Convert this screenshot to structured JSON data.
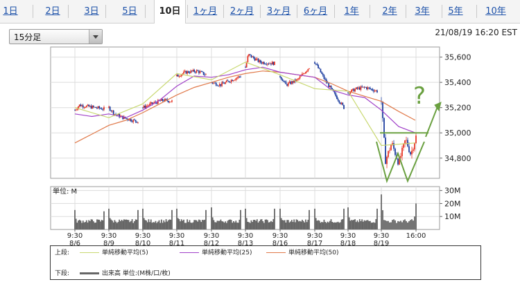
{
  "tabs": [
    {
      "label": "1日",
      "active": false
    },
    {
      "label": "2日",
      "active": false
    },
    {
      "label": "3日",
      "active": false
    },
    {
      "label": "5日",
      "active": false
    },
    {
      "label": "10日",
      "active": true
    },
    {
      "label": "1ヶ月",
      "active": false
    },
    {
      "label": "2ヶ月",
      "active": false
    },
    {
      "label": "3ヶ月",
      "active": false
    },
    {
      "label": "6ヶ月",
      "active": false
    },
    {
      "label": "1年",
      "active": false
    },
    {
      "label": "2年",
      "active": false
    },
    {
      "label": "3年",
      "active": false
    },
    {
      "label": "5年",
      "active": false
    },
    {
      "label": "10年",
      "active": false
    }
  ],
  "interval_select": {
    "value": "15分足"
  },
  "timestamp": "21/08/19 16:20 EST",
  "legend": {
    "upper_label": "上段:",
    "lower_label": "下段:",
    "upper_items": [
      {
        "label": "単純移動平均(5)",
        "color": "#c8d870"
      },
      {
        "label": "単純移動平均(25)",
        "color": "#a040c8"
      },
      {
        "label": "単純移動平均(50)",
        "color": "#e07848"
      }
    ],
    "lower_item": {
      "label": "出来高 単位:(M株/口/枚)",
      "color": "#666666"
    }
  },
  "colors": {
    "up": "#e83828",
    "down": "#2040a0",
    "ma5": "#c8d870",
    "ma25": "#a040c8",
    "ma50": "#e07848",
    "annotation": "#6aa040",
    "volume": "#666666"
  },
  "chart_data": [
    {
      "type": "candlestick",
      "ylim": [
        34640,
        35680
      ],
      "yticks": [
        34800,
        35000,
        35200,
        35400,
        35600
      ],
      "ytick_labels": [
        "34,800",
        "35,000",
        "35,200",
        "35,400",
        "35,600"
      ],
      "grid": true,
      "x_tick_labels": [
        {
          "time": "9:30",
          "date": "8/6"
        },
        {
          "time": "9:30",
          "date": "8/9"
        },
        {
          "time": "9:30",
          "date": "8/10"
        },
        {
          "time": "9:30",
          "date": "8/11"
        },
        {
          "time": "9:30",
          "date": "8/12"
        },
        {
          "time": "9:30",
          "date": "8/13"
        },
        {
          "time": "9:30",
          "date": "8/16"
        },
        {
          "time": "9:30",
          "date": "8/17"
        },
        {
          "time": "9:30",
          "date": "8/18"
        },
        {
          "time": "9:30",
          "date": "8/19"
        },
        {
          "time": "16:00",
          "date": ""
        }
      ],
      "session_path": [
        [
          [
            0,
            35180
          ],
          [
            0.15,
            35220
          ],
          [
            0.4,
            35210
          ],
          [
            0.7,
            35200
          ],
          [
            1,
            35190
          ]
        ],
        [
          [
            0,
            35200
          ],
          [
            0.2,
            35150
          ],
          [
            0.5,
            35120
          ],
          [
            0.8,
            35100
          ],
          [
            1,
            35090
          ]
        ],
        [
          [
            0,
            35200
          ],
          [
            0.3,
            35230
          ],
          [
            0.7,
            35260
          ],
          [
            1,
            35250
          ]
        ],
        [
          [
            0,
            35450
          ],
          [
            0.3,
            35480
          ],
          [
            0.7,
            35490
          ],
          [
            1,
            35460
          ]
        ],
        [
          [
            0,
            35400
          ],
          [
            0.3,
            35380
          ],
          [
            0.7,
            35420
          ],
          [
            1,
            35450
          ]
        ],
        [
          [
            0,
            35520
          ],
          [
            0.1,
            35620
          ],
          [
            0.5,
            35560
          ],
          [
            1,
            35550
          ]
        ],
        [
          [
            0,
            35450
          ],
          [
            0.2,
            35380
          ],
          [
            0.6,
            35420
          ],
          [
            1,
            35520
          ]
        ],
        [
          [
            0,
            35560
          ],
          [
            0.15,
            35500
          ],
          [
            0.4,
            35400
          ],
          [
            0.7,
            35300
          ],
          [
            1,
            35200
          ]
        ],
        [
          [
            0,
            35320
          ],
          [
            0.3,
            35350
          ],
          [
            0.6,
            35360
          ],
          [
            1,
            35330
          ]
        ],
        [
          [
            0,
            35250
          ],
          [
            0.12,
            34780
          ],
          [
            0.3,
            34920
          ],
          [
            0.5,
            34760
          ],
          [
            0.7,
            34950
          ],
          [
            0.85,
            34830
          ],
          [
            1,
            34970
          ]
        ]
      ],
      "ma5": [
        [
          0,
          35200
        ],
        [
          1,
          35120
        ],
        [
          2,
          35230
        ],
        [
          3,
          35470
        ],
        [
          4,
          35420
        ],
        [
          5,
          35560
        ],
        [
          6,
          35460
        ],
        [
          7,
          35350
        ],
        [
          8,
          35330
        ],
        [
          9,
          34900
        ],
        [
          9.98,
          34920
        ]
      ],
      "ma25": [
        [
          0,
          35150
        ],
        [
          0.5,
          35130
        ],
        [
          1,
          35150
        ],
        [
          1.5,
          35120
        ],
        [
          2,
          35180
        ],
        [
          2.5,
          35260
        ],
        [
          3,
          35370
        ],
        [
          3.5,
          35450
        ],
        [
          4,
          35440
        ],
        [
          4.5,
          35460
        ],
        [
          5,
          35500
        ],
        [
          5.5,
          35520
        ],
        [
          6,
          35480
        ],
        [
          6.5,
          35460
        ],
        [
          7,
          35440
        ],
        [
          7.5,
          35340
        ],
        [
          8,
          35300
        ],
        [
          8.5,
          35280
        ],
        [
          9,
          35180
        ],
        [
          9.5,
          35050
        ],
        [
          9.98,
          35000
        ]
      ],
      "ma50": [
        [
          0,
          34920
        ],
        [
          0.5,
          34990
        ],
        [
          1,
          35060
        ],
        [
          1.5,
          35100
        ],
        [
          2,
          35160
        ],
        [
          2.5,
          35230
        ],
        [
          3,
          35300
        ],
        [
          3.5,
          35360
        ],
        [
          4,
          35400
        ],
        [
          4.5,
          35440
        ],
        [
          5,
          35470
        ],
        [
          5.5,
          35490
        ],
        [
          6,
          35480
        ],
        [
          6.5,
          35460
        ],
        [
          7,
          35440
        ],
        [
          7.5,
          35390
        ],
        [
          8,
          35330
        ],
        [
          8.5,
          35290
        ],
        [
          9,
          35250
        ],
        [
          9.5,
          35170
        ],
        [
          9.98,
          35100
        ]
      ],
      "annotation": {
        "question_mark": "?",
        "w_pattern": true,
        "neckline": 35000
      }
    },
    {
      "type": "bar",
      "unit_label": "単位: M",
      "ylim": [
        0,
        33
      ],
      "yticks": [
        10,
        20,
        30
      ],
      "ytick_labels": [
        "10M",
        "20M",
        "30M"
      ],
      "session_open_spike": [
        15,
        16,
        16,
        16,
        17,
        16,
        16,
        16,
        17,
        27
      ],
      "session_close_spike": [
        14,
        15,
        15,
        15,
        15,
        16,
        15,
        16,
        16,
        20
      ],
      "base_level": 5
    }
  ]
}
